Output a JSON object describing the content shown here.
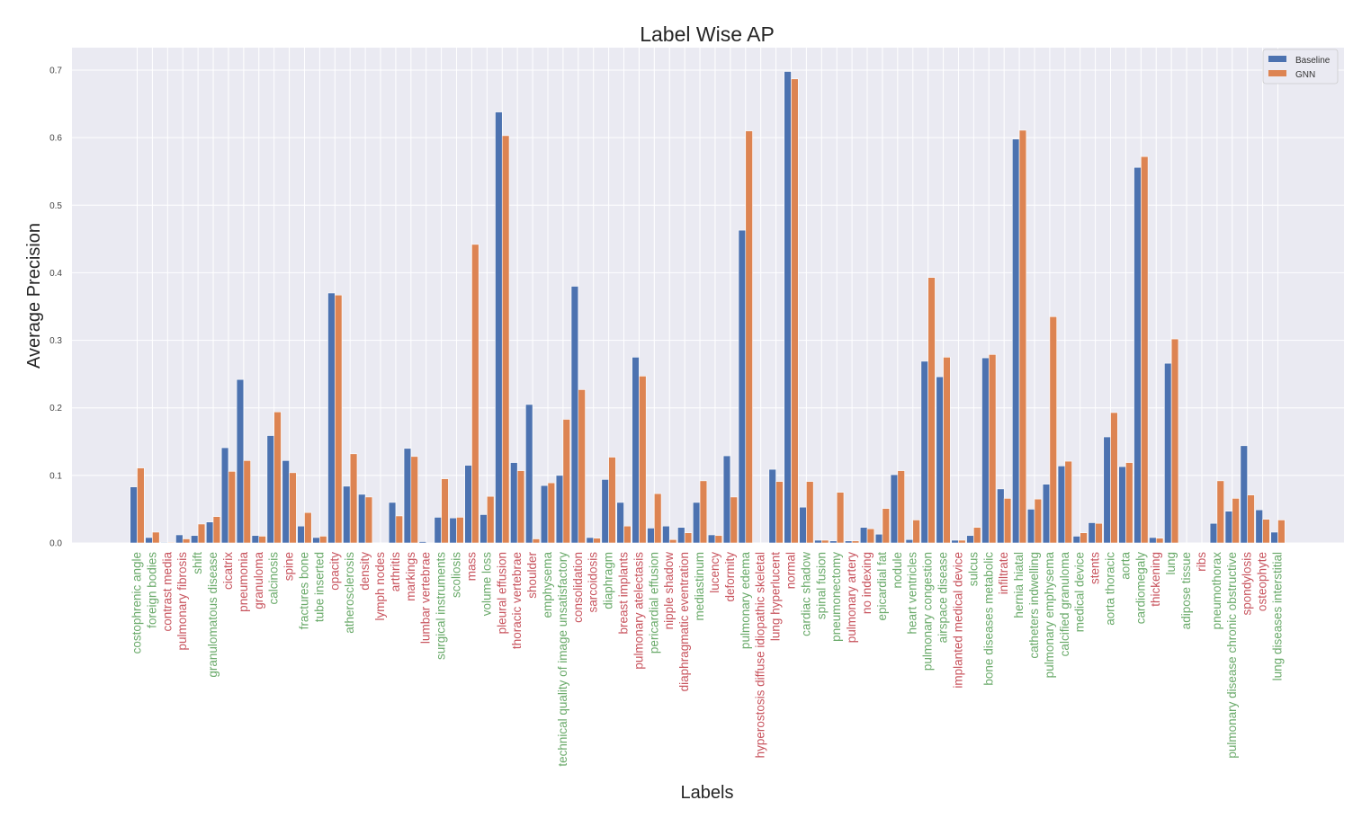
{
  "chart_data": {
    "type": "bar",
    "title": "Label Wise AP",
    "xlabel": "Labels",
    "ylabel": "Average Precision",
    "ylim": [
      0,
      0.73
    ],
    "yticks": [
      "0.0",
      "0.1",
      "0.2",
      "0.3",
      "0.4",
      "0.5",
      "0.6",
      "0.7"
    ],
    "grid": true,
    "legend_position": "top-right",
    "label_colors": {
      "green": "#6aaa6a",
      "red": "#c8545e"
    },
    "categories": [
      {
        "label": "costophrenic angle",
        "color": "green"
      },
      {
        "label": "foreign bodies",
        "color": "green"
      },
      {
        "label": "contrast media",
        "color": "red"
      },
      {
        "label": "pulmonary fibrosis",
        "color": "red"
      },
      {
        "label": "shift",
        "color": "green"
      },
      {
        "label": "granulomatous disease",
        "color": "green"
      },
      {
        "label": "cicatrix",
        "color": "red"
      },
      {
        "label": "pneumonia",
        "color": "red"
      },
      {
        "label": "granuloma",
        "color": "red"
      },
      {
        "label": "calcinosis",
        "color": "green"
      },
      {
        "label": "spine",
        "color": "red"
      },
      {
        "label": "fractures bone",
        "color": "green"
      },
      {
        "label": "tube inserted",
        "color": "green"
      },
      {
        "label": "opacity",
        "color": "red"
      },
      {
        "label": "atherosclerosis",
        "color": "green"
      },
      {
        "label": "density",
        "color": "red"
      },
      {
        "label": "lymph nodes",
        "color": "red"
      },
      {
        "label": "arthritis",
        "color": "red"
      },
      {
        "label": "markings",
        "color": "red"
      },
      {
        "label": "lumbar vertebrae",
        "color": "red"
      },
      {
        "label": "surgical instruments",
        "color": "green"
      },
      {
        "label": "scoliosis",
        "color": "green"
      },
      {
        "label": "mass",
        "color": "red"
      },
      {
        "label": "volume loss",
        "color": "green"
      },
      {
        "label": "pleural effusion",
        "color": "red"
      },
      {
        "label": "thoracic vertebrae",
        "color": "red"
      },
      {
        "label": "shoulder",
        "color": "red"
      },
      {
        "label": "emphysema",
        "color": "green"
      },
      {
        "label": "technical quality of image unsatisfactory",
        "color": "green"
      },
      {
        "label": "consolidation",
        "color": "red"
      },
      {
        "label": "sarcoidosis",
        "color": "red"
      },
      {
        "label": "diaphragm",
        "color": "green"
      },
      {
        "label": "breast implants",
        "color": "red"
      },
      {
        "label": "pulmonary atelectasis",
        "color": "red"
      },
      {
        "label": "pericardial effusion",
        "color": "green"
      },
      {
        "label": "nipple shadow",
        "color": "red"
      },
      {
        "label": "diaphragmatic eventration",
        "color": "red"
      },
      {
        "label": "mediastinum",
        "color": "green"
      },
      {
        "label": "lucency",
        "color": "red"
      },
      {
        "label": "deformity",
        "color": "red"
      },
      {
        "label": "pulmonary edema",
        "color": "green"
      },
      {
        "label": "hyperostosis diffuse idiopathic skeletal",
        "color": "red"
      },
      {
        "label": "lung hyperlucent",
        "color": "red"
      },
      {
        "label": "normal",
        "color": "red"
      },
      {
        "label": "cardiac shadow",
        "color": "green"
      },
      {
        "label": "spinal fusion",
        "color": "green"
      },
      {
        "label": "pneumonectomy",
        "color": "green"
      },
      {
        "label": "pulmonary artery",
        "color": "red"
      },
      {
        "label": "no indexing",
        "color": "red"
      },
      {
        "label": "epicardial fat",
        "color": "green"
      },
      {
        "label": "nodule",
        "color": "green"
      },
      {
        "label": "heart ventricles",
        "color": "green"
      },
      {
        "label": "pulmonary congestion",
        "color": "green"
      },
      {
        "label": "airspace disease",
        "color": "green"
      },
      {
        "label": "implanted medical device",
        "color": "red"
      },
      {
        "label": "sulcus",
        "color": "green"
      },
      {
        "label": "bone diseases metabolic",
        "color": "green"
      },
      {
        "label": "infiltrate",
        "color": "red"
      },
      {
        "label": "hernia hiatal",
        "color": "green"
      },
      {
        "label": "catheters indwelling",
        "color": "green"
      },
      {
        "label": "pulmonary emphysema",
        "color": "green"
      },
      {
        "label": "calcified granuloma",
        "color": "green"
      },
      {
        "label": "medical device",
        "color": "green"
      },
      {
        "label": "stents",
        "color": "red"
      },
      {
        "label": "aorta thoracic",
        "color": "green"
      },
      {
        "label": "aorta",
        "color": "green"
      },
      {
        "label": "cardiomegaly",
        "color": "green"
      },
      {
        "label": "thickening",
        "color": "red"
      },
      {
        "label": "lung",
        "color": "green"
      },
      {
        "label": "adipose tissue",
        "color": "green"
      },
      {
        "label": "ribs",
        "color": "red"
      },
      {
        "label": "pneumothorax",
        "color": "green"
      },
      {
        "label": "pulmonary disease chronic obstructive",
        "color": "green"
      },
      {
        "label": "spondylosis",
        "color": "red"
      },
      {
        "label": "osteophyte",
        "color": "red"
      },
      {
        "label": "lung diseases interstitial",
        "color": "green"
      }
    ],
    "series": [
      {
        "name": "Baseline",
        "color": "#4c72b0",
        "values": [
          0.083,
          0.008,
          0.001,
          0.012,
          0.011,
          0.031,
          0.141,
          0.242,
          0.011,
          0.159,
          0.122,
          0.025,
          0.008,
          0.37,
          0.084,
          0.072,
          0.0,
          0.06,
          0.14,
          0.002,
          0.038,
          0.037,
          0.115,
          0.042,
          0.638,
          0.119,
          0.205,
          0.085,
          0.1,
          0.38,
          0.008,
          0.094,
          0.06,
          0.275,
          0.022,
          0.025,
          0.023,
          0.06,
          0.012,
          0.129,
          0.463,
          0.0,
          0.109,
          0.698,
          0.053,
          0.004,
          0.003,
          0.003,
          0.023,
          0.013,
          0.101,
          0.005,
          0.269,
          0.246,
          0.004,
          0.011,
          0.274,
          0.08,
          0.598,
          0.05,
          0.087,
          0.114,
          0.01,
          0.03,
          0.157,
          0.113,
          0.556,
          0.008,
          0.266,
          0.0,
          0.0,
          0.029,
          0.047,
          0.144,
          0.049,
          0.016
        ]
      },
      {
        "name": "GNN",
        "color": "#dd8452",
        "values": [
          0.111,
          0.016,
          0.001,
          0.006,
          0.028,
          0.039,
          0.106,
          0.122,
          0.01,
          0.194,
          0.104,
          0.045,
          0.01,
          0.367,
          0.132,
          0.068,
          0.0,
          0.04,
          0.128,
          0.0,
          0.095,
          0.038,
          0.442,
          0.069,
          0.603,
          0.107,
          0.006,
          0.089,
          0.183,
          0.227,
          0.007,
          0.127,
          0.025,
          0.247,
          0.073,
          0.005,
          0.015,
          0.092,
          0.011,
          0.068,
          0.61,
          0.0,
          0.091,
          0.687,
          0.091,
          0.004,
          0.075,
          0.003,
          0.021,
          0.051,
          0.107,
          0.034,
          0.393,
          0.275,
          0.004,
          0.023,
          0.279,
          0.066,
          0.611,
          0.065,
          0.335,
          0.121,
          0.015,
          0.029,
          0.193,
          0.119,
          0.572,
          0.007,
          0.302,
          0.0,
          0.0,
          0.092,
          0.066,
          0.071,
          0.035,
          0.034
        ]
      }
    ]
  }
}
